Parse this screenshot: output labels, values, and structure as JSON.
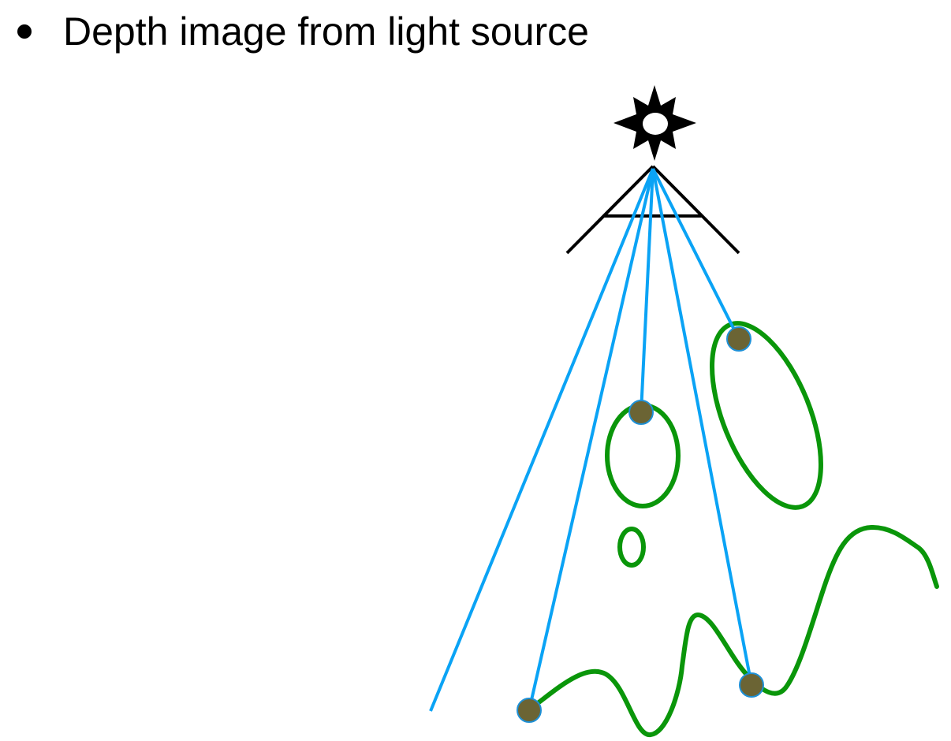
{
  "bullet": {
    "text": "Depth image from light source"
  },
  "colors": {
    "ray": "#0aa3f5",
    "surface": "#0a960a",
    "hit_point_fill": "#6b6434",
    "hit_point_stroke": "#1e90d6",
    "light": "#000000",
    "frustum": "#000000",
    "background": "#ffffff"
  },
  "icons": {
    "light": "star-light-source-icon"
  }
}
